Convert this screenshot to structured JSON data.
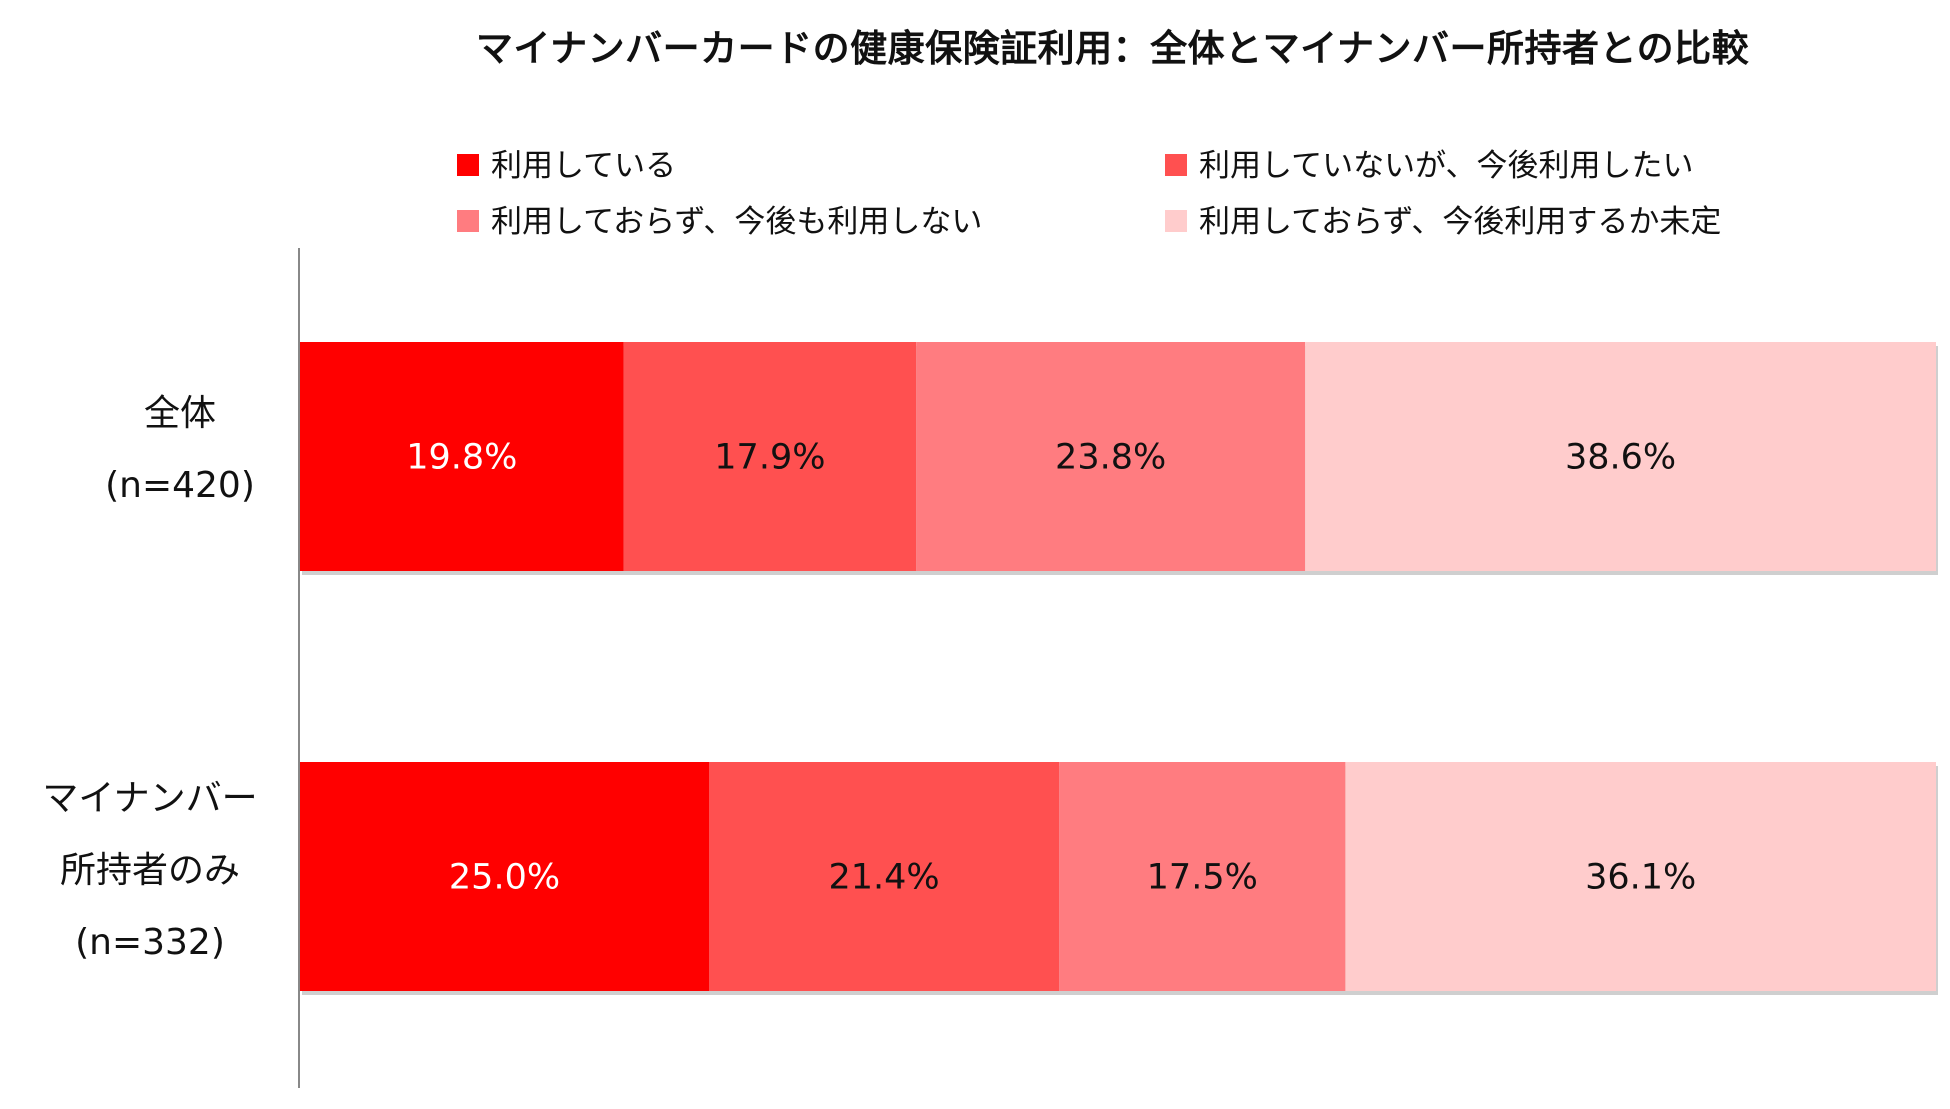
{
  "chart_data": {
    "type": "bar",
    "orientation": "horizontal",
    "stacked": true,
    "normalized": true,
    "title": "マイナンバーカードの健康保険証利用：全体とマイナンバー所持者との比較",
    "categories": [
      [
        "全体",
        "(n=420)"
      ],
      [
        "マイナンバー",
        "所持者のみ",
        "(n=332)"
      ]
    ],
    "series": [
      {
        "name": "利用している",
        "color": "#ff0000",
        "label_color": "#ffffff",
        "values": [
          19.8,
          25.0
        ],
        "labels": [
          "19.8%",
          "25.0%"
        ]
      },
      {
        "name": "利用していないが、今後利用したい",
        "color": "#ff5050",
        "label_color": "#111111",
        "values": [
          17.9,
          21.4
        ],
        "labels": [
          "17.9%",
          "21.4%"
        ]
      },
      {
        "name": "利用しておらず、今後も利用しない",
        "color": "#ff7c80",
        "label_color": "#111111",
        "values": [
          23.8,
          17.5
        ],
        "labels": [
          "23.8%",
          "17.5%"
        ]
      },
      {
        "name": "利用しておらず、今後利用するか未定",
        "color": "#ffcccc",
        "label_color": "#111111",
        "values": [
          38.6,
          36.1
        ],
        "labels": [
          "38.6%",
          "36.1%"
        ]
      }
    ],
    "xlim": [
      0,
      100
    ],
    "legend_position": "top",
    "grid": false
  }
}
